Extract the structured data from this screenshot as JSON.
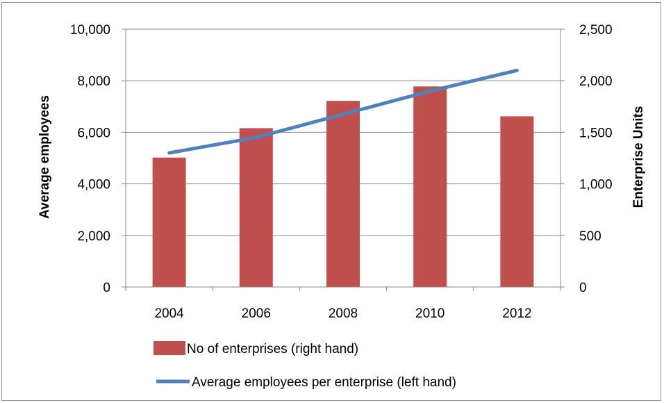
{
  "chart_data": {
    "type": "bar",
    "categories": [
      "2004",
      "2006",
      "2008",
      "2010",
      "2012"
    ],
    "series": [
      {
        "name": "No of enterprises (right hand)",
        "kind": "bar",
        "axis": "right",
        "values": [
          1255,
          1540,
          1805,
          1945,
          1655
        ],
        "color": "#c0504d"
      },
      {
        "name": "Average employees per enterprise (left hand)",
        "kind": "line",
        "axis": "left",
        "values": [
          5200,
          5800,
          6700,
          7600,
          8400
        ],
        "color": "#4f81bd"
      }
    ],
    "ylabel": "Average employees",
    "ylabel_right": "Enterprise Units",
    "xlabel": "",
    "ylim": [
      0,
      10000
    ],
    "ylim_right": [
      0,
      2500
    ],
    "yticks": [
      "0",
      "2,000",
      "4,000",
      "6,000",
      "8,000",
      "10,000"
    ],
    "yticks_right": [
      "0",
      "500",
      "1,000",
      "1,500",
      "2,000",
      "2,500"
    ],
    "grid": true,
    "legend_position": "bottom"
  }
}
